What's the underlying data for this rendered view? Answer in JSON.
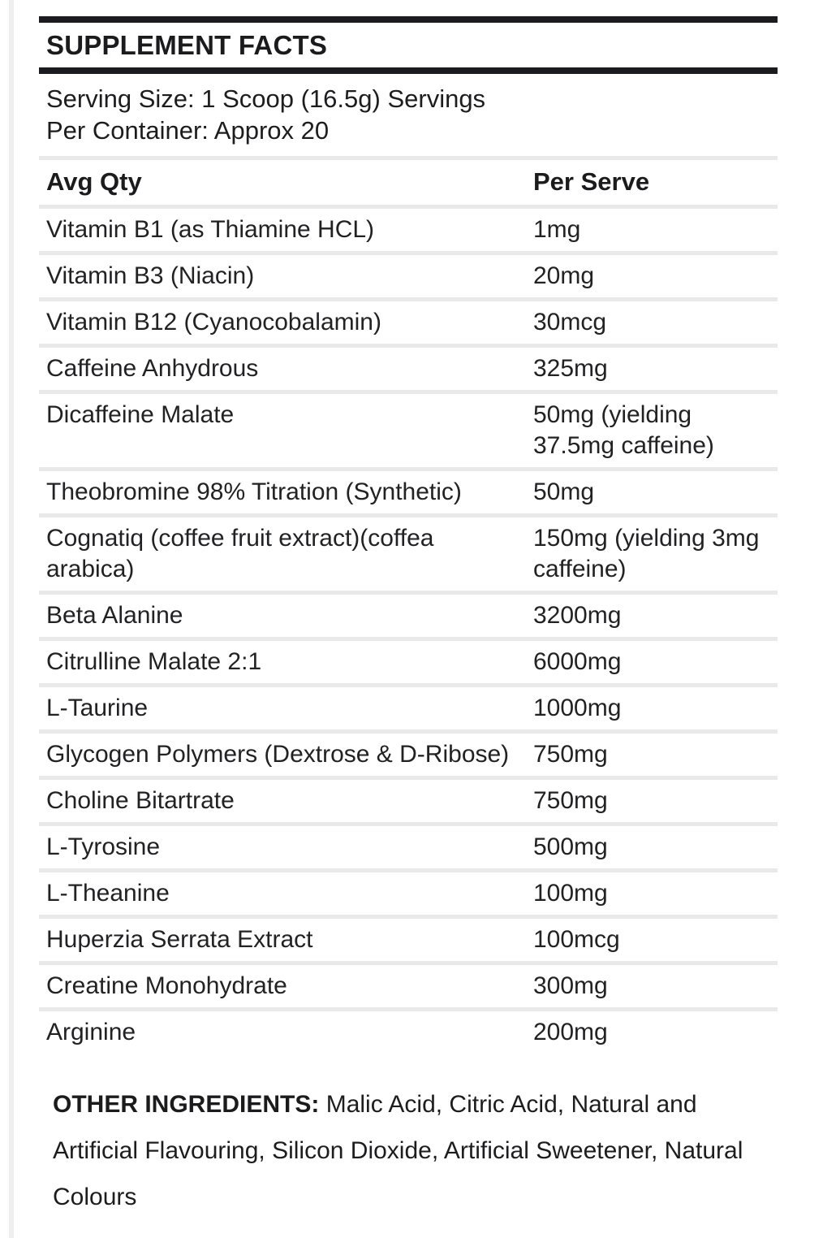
{
  "label": {
    "title": "SUPPLEMENT FACTS",
    "serving": {
      "line1": "Serving Size: 1 Scoop (16.5g) Servings",
      "line2": "Per Container: Approx 20"
    },
    "columns": {
      "name": "Avg Qty",
      "amount": "Per Serve"
    },
    "rows": [
      {
        "name": "Vitamin B1 (as Thiamine HCL)",
        "amount": "1mg"
      },
      {
        "name": "Vitamin B3 (Niacin)",
        "amount": "20mg"
      },
      {
        "name": "Vitamin B12 (Cyanocobalamin)",
        "amount": "30mcg"
      },
      {
        "name": "Caffeine Anhydrous",
        "amount": "325mg"
      },
      {
        "name": "Dicaffeine Malate",
        "amount": "50mg (yielding 37.5mg caffeine)"
      },
      {
        "name": "Theobromine 98% Titration (Synthetic)",
        "amount": "50mg"
      },
      {
        "name": "Cognatiq (coffee fruit extract)(coffea arabica)",
        "amount": "150mg (yielding 3mg caffeine)"
      },
      {
        "name": "Beta Alanine",
        "amount": "3200mg"
      },
      {
        "name": "Citrulline Malate 2:1",
        "amount": "6000mg"
      },
      {
        "name": "L-Taurine",
        "amount": "1000mg"
      },
      {
        "name": "Glycogen Polymers (Dextrose & D-Ribose)",
        "amount": "750mg"
      },
      {
        "name": "Choline Bitartrate",
        "amount": "750mg"
      },
      {
        "name": "L-Tyrosine",
        "amount": "500mg"
      },
      {
        "name": "L-Theanine",
        "amount": "100mg"
      },
      {
        "name": "Huperzia Serrata Extract",
        "amount": "100mcg"
      },
      {
        "name": "Creatine Monohydrate",
        "amount": "300mg"
      },
      {
        "name": "Arginine",
        "amount": "200mg"
      }
    ],
    "other_ingredients": {
      "label": "OTHER INGREDIENTS:",
      "text": "Malic Acid, Citric Acid, Natural and Artificial Flavouring, Silicon Dioxide, Artificial Sweetener, Natural Colours"
    },
    "colors": {
      "rule": "#1c1c1e",
      "divider": "#e9e9ea",
      "text": "#1d1d1f",
      "background": "#ffffff"
    }
  }
}
